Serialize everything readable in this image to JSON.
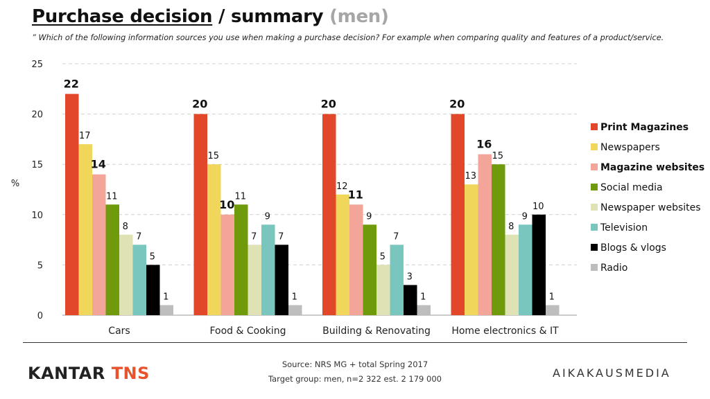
{
  "header": {
    "title_part1": "Purchase decision",
    "title_part2": " / summary ",
    "title_part3": "(men)",
    "subtitle": "” Which of the following information sources you use when making a purchase decision? For example when comparing quality and features of a product/service."
  },
  "chart_data": {
    "type": "bar",
    "ylabel": "%",
    "ylim": [
      0,
      25
    ],
    "yticks": [
      0,
      5,
      10,
      15,
      20,
      25
    ],
    "grid": true,
    "legend_position": "right",
    "categories": [
      "Cars",
      "Food & Cooking",
      "Building & Renovating",
      "Home electronics & IT"
    ],
    "series": [
      {
        "name": "Print Magazines",
        "color": "#e2472a",
        "bold": true,
        "values": [
          22,
          20,
          20,
          20
        ]
      },
      {
        "name": "Newspapers",
        "color": "#f0d65a",
        "bold": false,
        "values": [
          17,
          15,
          12,
          13
        ]
      },
      {
        "name": "Magazine websites",
        "color": "#f3a59a",
        "bold": true,
        "values": [
          14,
          10,
          11,
          16
        ]
      },
      {
        "name": "Social media",
        "color": "#6f9a0b",
        "bold": false,
        "values": [
          11,
          11,
          9,
          15
        ]
      },
      {
        "name": "Newspaper websites",
        "color": "#dfe2b4",
        "bold": false,
        "values": [
          8,
          7,
          5,
          8
        ]
      },
      {
        "name": "Television",
        "color": "#78c6be",
        "bold": false,
        "values": [
          7,
          9,
          7,
          9
        ]
      },
      {
        "name": "Blogs & vlogs",
        "color": "#000000",
        "bold": false,
        "values": [
          5,
          7,
          3,
          10
        ]
      },
      {
        "name": "Radio",
        "color": "#bdbdbd",
        "bold": false,
        "values": [
          1,
          1,
          1,
          1
        ]
      }
    ]
  },
  "footer": {
    "source_line1": "Source: NRS MG + total Spring 2017",
    "source_line2": "Target group: men, n=2 322 est. 2 179 000",
    "logo_left_part1": "KANTAR ",
    "logo_left_part2": "TNS",
    "logo_right": "AIKAKAUSMEDIA"
  }
}
